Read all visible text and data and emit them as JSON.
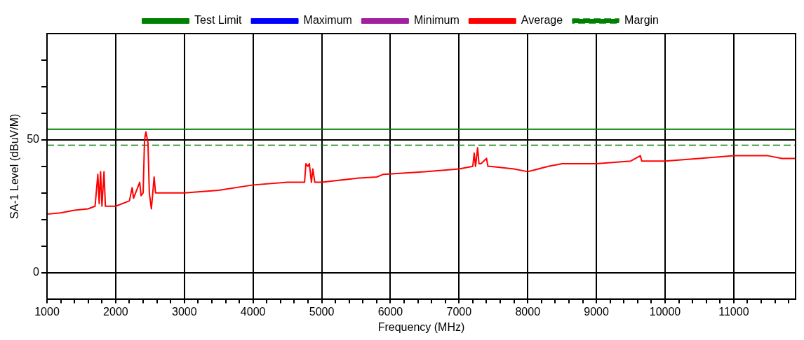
{
  "chart_data": {
    "type": "line",
    "xlabel": "Frequency (MHz)",
    "ylabel": "SA-1 Level (dBuV/M)",
    "xlim": [
      1000,
      11900
    ],
    "ylim": [
      -10,
      90
    ],
    "xticks": [
      1000,
      {
        "value": 1200,
        "label": null
      },
      {
        "value": 1400,
        "label": null
      },
      {
        "value": 1600,
        "label": null
      },
      {
        "value": 1800,
        "label": null
      },
      2000,
      {
        "value": 2200,
        "label": null
      },
      {
        "value": 2400,
        "label": null
      },
      {
        "value": 2600,
        "label": null
      },
      {
        "value": 2800,
        "label": null
      },
      3000,
      {
        "value": 3200,
        "label": null
      },
      {
        "value": 3400,
        "label": null
      },
      {
        "value": 3600,
        "label": null
      },
      {
        "value": 3800,
        "label": null
      },
      4000,
      {
        "value": 4200,
        "label": null
      },
      {
        "value": 4400,
        "label": null
      },
      {
        "value": 4600,
        "label": null
      },
      {
        "value": 4800,
        "label": null
      },
      5000,
      {
        "value": 5200,
        "label": null
      },
      {
        "value": 5400,
        "label": null
      },
      {
        "value": 5600,
        "label": null
      },
      {
        "value": 5800,
        "label": null
      },
      6000,
      {
        "value": 6200,
        "label": null
      },
      {
        "value": 6400,
        "label": null
      },
      {
        "value": 6600,
        "label": null
      },
      {
        "value": 6800,
        "label": null
      },
      7000,
      {
        "value": 7200,
        "label": null
      },
      {
        "value": 7400,
        "label": null
      },
      {
        "value": 7600,
        "label": null
      },
      {
        "value": 7800,
        "label": null
      },
      8000,
      {
        "value": 8200,
        "label": null
      },
      {
        "value": 8400,
        "label": null
      },
      {
        "value": 8600,
        "label": null
      },
      {
        "value": 8800,
        "label": null
      },
      9000,
      {
        "value": 9200,
        "label": null
      },
      {
        "value": 9400,
        "label": null
      },
      {
        "value": 9600,
        "label": null
      },
      {
        "value": 9800,
        "label": null
      },
      10000,
      {
        "value": 10200,
        "label": null
      },
      {
        "value": 10400,
        "label": null
      },
      {
        "value": 10600,
        "label": null
      },
      {
        "value": 10800,
        "label": null
      },
      11000,
      {
        "value": 11200,
        "label": null
      },
      {
        "value": 11400,
        "label": null
      },
      {
        "value": 11600,
        "label": null
      },
      {
        "value": 11800,
        "label": null
      }
    ],
    "yticks": [
      0,
      {
        "value": 10,
        "label": null
      },
      {
        "value": 20,
        "label": null
      },
      {
        "value": 30,
        "label": null
      },
      {
        "value": 40,
        "label": null
      },
      50,
      {
        "value": 60,
        "label": null
      },
      {
        "value": 70,
        "label": null
      },
      {
        "value": 80,
        "label": null
      }
    ],
    "grid": true,
    "legend": "top",
    "marker": "none",
    "series": [
      {
        "name": "Test Limit",
        "color": "#008000",
        "x": [
          1000,
          11900
        ],
        "values": [
          54,
          54
        ],
        "line_style": "solid"
      },
      {
        "name": "Maximum",
        "color": "#0000ff",
        "line_style": "solid"
      },
      {
        "name": "Minimum",
        "color": "#a020a0",
        "line_style": "solid"
      },
      {
        "name": "Average",
        "color": "#ff0000",
        "line_style": "solid",
        "x": [
          1000,
          1200,
          1400,
          1600,
          1700,
          1740,
          1760,
          1780,
          1800,
          1830,
          1850,
          1870,
          2000,
          2200,
          2240,
          2260,
          2350,
          2370,
          2400,
          2420,
          2440,
          2470,
          2490,
          2520,
          2560,
          2580,
          2600,
          2800,
          3000,
          3500,
          4000,
          4500,
          4750,
          4770,
          4800,
          4820,
          4850,
          4870,
          4900,
          5000,
          5500,
          5800,
          5900,
          6500,
          7000,
          7200,
          7220,
          7240,
          7270,
          7290,
          7320,
          7400,
          7420,
          7450,
          7800,
          8000,
          8300,
          8500,
          9000,
          9500,
          9640,
          9660,
          9700,
          10000,
          10500,
          11000,
          11500,
          11700,
          11900
        ],
        "values": [
          22,
          22.5,
          23.5,
          24,
          25,
          37,
          26,
          38,
          25,
          38,
          25,
          25,
          25,
          27,
          32,
          28,
          34,
          29,
          30,
          50,
          53,
          49,
          30,
          24,
          36,
          30,
          30,
          30,
          30,
          31,
          33,
          34,
          34,
          41,
          40,
          41,
          34,
          39,
          34,
          34,
          35.5,
          36,
          37,
          38,
          39,
          40,
          45,
          40,
          47,
          41,
          41,
          43,
          40,
          40,
          39,
          38,
          40,
          41,
          41,
          42,
          44,
          42,
          42,
          42,
          43,
          44,
          44,
          43,
          43
        ]
      },
      {
        "name": "Margin",
        "color": "#008000",
        "x": [
          1000,
          11900
        ],
        "values": [
          48,
          48
        ],
        "line_style": "dashed"
      }
    ]
  }
}
